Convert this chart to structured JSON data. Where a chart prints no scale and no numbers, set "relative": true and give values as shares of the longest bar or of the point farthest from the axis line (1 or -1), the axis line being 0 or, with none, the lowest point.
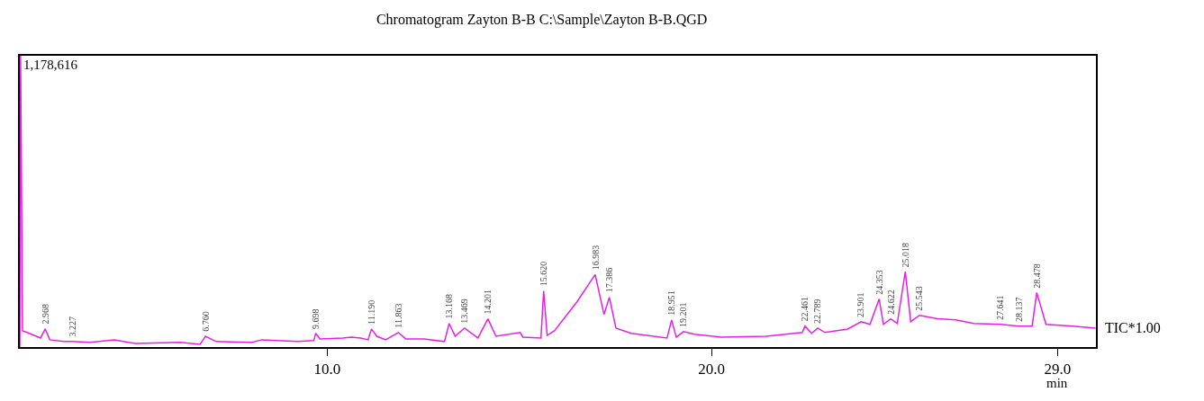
{
  "chart_data": {
    "type": "line",
    "title": "Chromatogram Zayton B-B C:\\Sample\\Zayton B-B.QGD",
    "xlabel": "min",
    "relative": true,
    "tick_labels": "x",
    "legend": false,
    "marker": "none",
    "line_style": "solid",
    "xlim": [
      2.0,
      30.0
    ],
    "xticks": [
      {
        "value": 10,
        "label": "10.0"
      },
      {
        "value": 20,
        "label": "20.0"
      },
      {
        "value": 29,
        "label": "29.0"
      }
    ],
    "series": [
      {
        "name": "TIC*1.00",
        "color": "#e81ee8",
        "x": [
          2.0,
          2.02,
          2.07,
          2.19,
          2.54,
          2.66,
          2.78,
          3.13,
          3.36,
          3.83,
          4.46,
          5.0,
          6.18,
          6.69,
          6.83,
          7.11,
          8.05,
          8.29,
          9.23,
          9.65,
          9.7,
          9.81,
          10.4,
          10.63,
          10.87,
          11.06,
          11.15,
          11.29,
          11.52,
          11.85,
          12.04,
          12.51,
          13.05,
          13.17,
          13.33,
          13.57,
          13.92,
          14.18,
          14.39,
          15.02,
          15.09,
          15.56,
          15.63,
          15.72,
          15.91,
          16.5,
          16.97,
          17.2,
          17.34,
          17.51,
          17.91,
          18.84,
          18.96,
          19.08,
          19.27,
          19.55,
          20.25,
          21.42,
          22.36,
          22.43,
          22.6,
          22.76,
          22.95,
          23.54,
          23.89,
          24.12,
          24.36,
          24.47,
          24.66,
          24.83,
          25.04,
          25.18,
          25.41,
          25.88,
          26.35,
          26.82,
          27.52,
          27.99,
          28.34,
          28.46,
          28.7,
          29.4,
          29.99
        ],
        "values": [
          0,
          1,
          0.056,
          0.05,
          0.031,
          0.062,
          0.025,
          0.019,
          0.019,
          0.016,
          0.025,
          0.012,
          0.016,
          0.009,
          0.037,
          0.019,
          0.016,
          0.025,
          0.019,
          0.022,
          0.047,
          0.028,
          0.031,
          0.034,
          0.031,
          0.025,
          0.062,
          0.037,
          0.025,
          0.05,
          0.028,
          0.028,
          0.019,
          0.081,
          0.037,
          0.065,
          0.031,
          0.097,
          0.037,
          0.05,
          0.034,
          0.031,
          0.193,
          0.04,
          0.056,
          0.156,
          0.249,
          0.112,
          0.171,
          0.065,
          0.047,
          0.031,
          0.093,
          0.034,
          0.053,
          0.044,
          0.034,
          0.037,
          0.05,
          0.072,
          0.047,
          0.065,
          0.05,
          0.062,
          0.087,
          0.078,
          0.165,
          0.078,
          0.097,
          0.081,
          0.259,
          0.087,
          0.109,
          0.097,
          0.093,
          0.081,
          0.078,
          0.072,
          0.072,
          0.187,
          0.078,
          0.072,
          0.065
        ]
      }
    ],
    "annotations": [
      {
        "text": "1,178,616",
        "x": 2.0,
        "y": 1
      },
      {
        "text": "2.968",
        "x": 2.66,
        "y": 0.062
      },
      {
        "text": "3.227",
        "x": 3.36,
        "y": 0.019
      },
      {
        "text": "6.760",
        "x": 6.83,
        "y": 0.037
      },
      {
        "text": "9.698",
        "x": 9.7,
        "y": 0.047
      },
      {
        "text": "11.190",
        "x": 11.15,
        "y": 0.062
      },
      {
        "text": "11.863",
        "x": 11.85,
        "y": 0.05
      },
      {
        "text": "13.168",
        "x": 13.17,
        "y": 0.081
      },
      {
        "text": "13.469",
        "x": 13.57,
        "y": 0.065
      },
      {
        "text": "14.201",
        "x": 14.18,
        "y": 0.097
      },
      {
        "text": "15.620",
        "x": 15.63,
        "y": 0.193
      },
      {
        "text": "16.983",
        "x": 16.97,
        "y": 0.249
      },
      {
        "text": "17.386",
        "x": 17.34,
        "y": 0.171
      },
      {
        "text": "18.951",
        "x": 18.96,
        "y": 0.093
      },
      {
        "text": "19.201",
        "x": 19.27,
        "y": 0.053
      },
      {
        "text": "22.461",
        "x": 22.43,
        "y": 0.072
      },
      {
        "text": "22.789",
        "x": 22.76,
        "y": 0.065
      },
      {
        "text": "23.901",
        "x": 23.89,
        "y": 0.087
      },
      {
        "text": "24.353",
        "x": 24.36,
        "y": 0.165
      },
      {
        "text": "24.622",
        "x": 24.66,
        "y": 0.097
      },
      {
        "text": "25.018",
        "x": 25.04,
        "y": 0.259
      },
      {
        "text": "25.543",
        "x": 25.41,
        "y": 0.109
      },
      {
        "text": "27.641",
        "x": 27.52,
        "y": 0.078
      },
      {
        "text": "28.137",
        "x": 27.99,
        "y": 0.072
      },
      {
        "text": "28.478",
        "x": 28.46,
        "y": 0.187
      }
    ]
  }
}
